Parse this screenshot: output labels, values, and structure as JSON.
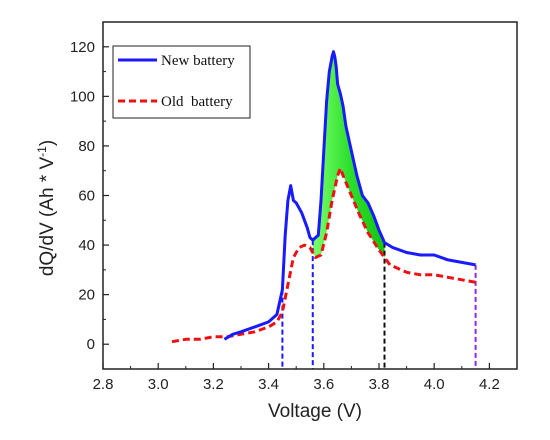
{
  "chart_data": {
    "type": "line",
    "xlabel": "Voltage (V)",
    "ylabel_main": "dQ/dV (Ah * V",
    "ylabel_sup": "-1",
    "ylabel_close": ")",
    "xlim": [
      2.8,
      4.3
    ],
    "ylim": [
      -10,
      130
    ],
    "x_ticks": [
      2.8,
      3.0,
      3.2,
      3.4,
      3.6,
      3.8,
      4.0,
      4.2
    ],
    "x_tick_labels": [
      "2.8",
      "3.0",
      "3.2",
      "3.4",
      "3.6",
      "3.8",
      "4.0",
      "4.2"
    ],
    "y_ticks": [
      0,
      20,
      40,
      60,
      80,
      100,
      120
    ],
    "y_tick_labels": [
      "0",
      "20",
      "40",
      "60",
      "80",
      "100",
      "120"
    ],
    "legend_position": "top-left",
    "series": [
      {
        "name": "New battery",
        "color": "#1a1aff",
        "dash": "solid",
        "x": [
          3.24,
          3.27,
          3.3,
          3.35,
          3.4,
          3.43,
          3.45,
          3.46,
          3.47,
          3.48,
          3.49,
          3.5,
          3.52,
          3.54,
          3.55,
          3.56,
          3.57,
          3.58,
          3.59,
          3.6,
          3.61,
          3.62,
          3.63,
          3.635,
          3.64,
          3.645,
          3.65,
          3.66,
          3.67,
          3.68,
          3.7,
          3.72,
          3.74,
          3.76,
          3.78,
          3.8,
          3.82,
          3.85,
          3.9,
          3.95,
          4.0,
          4.05,
          4.1,
          4.15
        ],
        "y": [
          2,
          4,
          5,
          7,
          9,
          12,
          22,
          44,
          58,
          64,
          58,
          57,
          53,
          47,
          43,
          42,
          43,
          44,
          58,
          78,
          98,
          110,
          116,
          118,
          116,
          112,
          105,
          101,
          96,
          88,
          78,
          68,
          60,
          57,
          52,
          46,
          41,
          39,
          37,
          36,
          36,
          34,
          33,
          32
        ]
      },
      {
        "name": "Old  battery",
        "color": "#ee1111",
        "dash": "dashed",
        "x": [
          3.05,
          3.1,
          3.15,
          3.2,
          3.25,
          3.3,
          3.35,
          3.4,
          3.43,
          3.45,
          3.47,
          3.49,
          3.51,
          3.53,
          3.55,
          3.57,
          3.59,
          3.61,
          3.63,
          3.65,
          3.66,
          3.67,
          3.7,
          3.73,
          3.76,
          3.8,
          3.84,
          3.9,
          3.95,
          4.0,
          4.05,
          4.1,
          4.15
        ],
        "y": [
          1,
          2,
          2,
          3,
          3,
          4,
          5,
          7,
          9,
          13,
          24,
          35,
          39,
          40,
          39,
          35,
          36,
          45,
          58,
          68,
          71,
          68,
          60,
          52,
          45,
          38,
          32,
          29,
          28,
          28,
          27,
          26,
          25
        ]
      }
    ],
    "vertical_markers": [
      {
        "x": 3.45,
        "color": "#1a1aff"
      },
      {
        "x": 3.56,
        "color": "#1a1aff"
      },
      {
        "x": 3.82,
        "color": "#111111"
      },
      {
        "x": 4.15,
        "color": "#8a2be2"
      }
    ],
    "shaded_region": {
      "x_start": 3.56,
      "x_end": 3.82,
      "between": [
        "New battery",
        "Old  battery"
      ],
      "color": "#22dd22"
    }
  }
}
